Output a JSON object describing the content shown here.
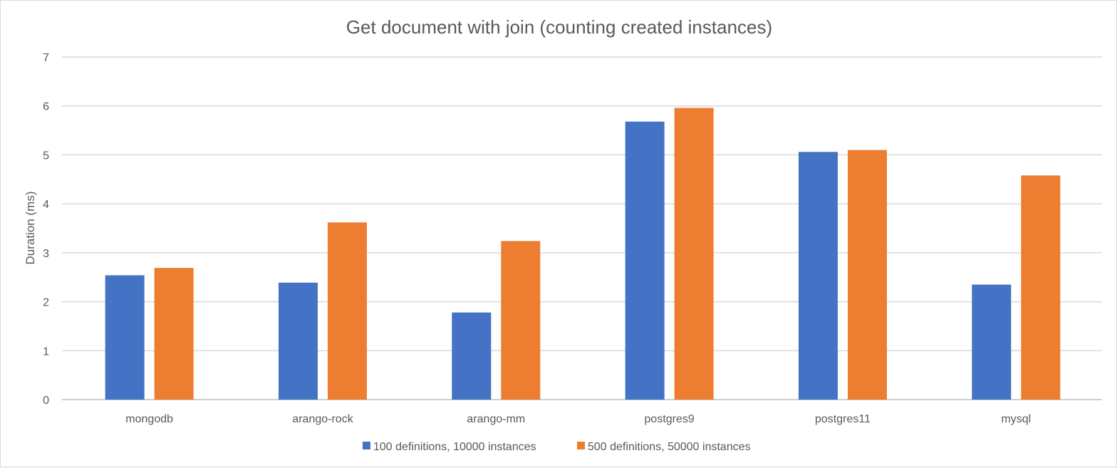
{
  "chart_data": {
    "type": "bar",
    "title": "Get document with join (counting created instances)",
    "xlabel": "",
    "ylabel": "Duration (ms)",
    "ylim": [
      0,
      7
    ],
    "yticks": [
      "0",
      "1",
      "2",
      "3",
      "4",
      "5",
      "6",
      "7"
    ],
    "grid": true,
    "legend_position": "bottom",
    "categories": [
      "mongodb",
      "arango-rock",
      "arango-mm",
      "postgres9",
      "postgres11",
      "mysql"
    ],
    "series": [
      {
        "name": "100 definitions, 10000 instances",
        "color": "#4472c4",
        "values": [
          2.54,
          2.39,
          1.78,
          5.68,
          5.06,
          2.35
        ]
      },
      {
        "name": "500 definitions, 50000 instances",
        "color": "#ed7d31",
        "values": [
          2.69,
          3.62,
          3.24,
          5.96,
          5.1,
          4.58
        ]
      }
    ]
  }
}
